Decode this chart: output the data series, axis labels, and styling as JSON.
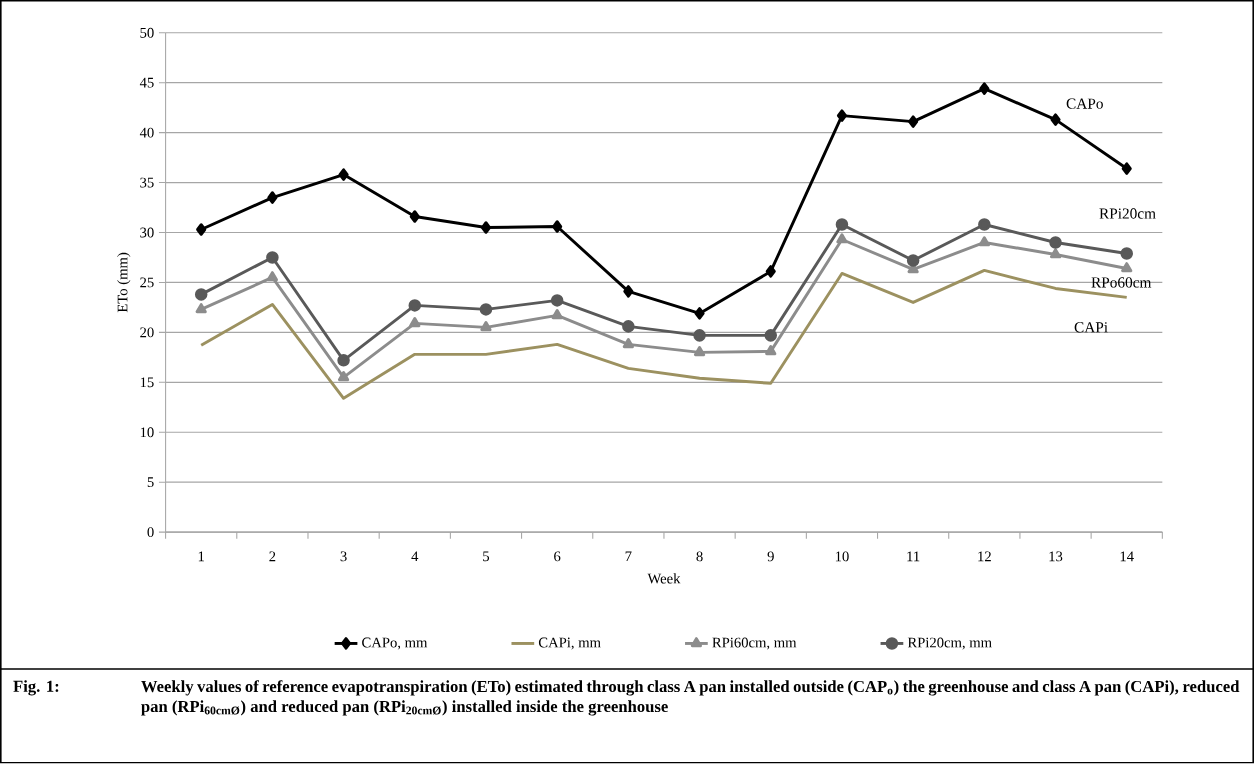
{
  "chart_data": {
    "type": "line",
    "xlabel": "Week",
    "ylabel": "ETo (mm)",
    "categories": [
      "1",
      "2",
      "3",
      "4",
      "5",
      "6",
      "7",
      "8",
      "9",
      "10",
      "11",
      "12",
      "13",
      "14"
    ],
    "ylim": [
      0,
      50
    ],
    "yticks": [
      0,
      5,
      10,
      15,
      20,
      25,
      30,
      35,
      40,
      45,
      50
    ],
    "grid": "y",
    "legend": "bottom",
    "series": [
      {
        "name": "CAPo, mm",
        "color": "#000000",
        "marker": "diamond",
        "values": [
          30.3,
          33.5,
          35.8,
          31.6,
          30.5,
          30.6,
          24.1,
          21.9,
          26.1,
          41.7,
          41.1,
          44.4,
          41.3,
          36.4
        ]
      },
      {
        "name": "CAPi, mm",
        "color": "#9c9160",
        "marker": "none",
        "values": [
          18.7,
          22.8,
          13.4,
          17.8,
          17.8,
          18.8,
          16.4,
          15.4,
          14.9,
          25.9,
          23.0,
          26.2,
          24.4,
          23.5
        ]
      },
      {
        "name": "RPi60cm, mm",
        "color": "#8c8c8c",
        "marker": "triangle",
        "values": [
          22.3,
          25.5,
          15.5,
          20.9,
          20.5,
          21.7,
          18.8,
          18.0,
          18.1,
          29.3,
          26.3,
          29.0,
          27.8,
          26.4
        ]
      },
      {
        "name": "RPi20cm, mm",
        "color": "#595959",
        "marker": "circle",
        "values": [
          23.8,
          27.5,
          17.2,
          22.7,
          22.3,
          23.2,
          20.6,
          19.7,
          19.7,
          30.8,
          27.2,
          30.8,
          29.0,
          27.9
        ]
      }
    ],
    "annotations": [
      "CAPo",
      "RPi20cm",
      "RPo60cm",
      "CAPi",
      "Fig. 1:",
      "Weekly values of reference evapotranspiration (ETo) estimated through class A pan installed outside (CAP$_{o}$) the greenhouse and class A pan (CAPi), reduced pan (RPi$_{60cmØ}$) and reduced pan (RPi$_{20cmØ}$) installed inside the greenhouse"
    ]
  }
}
